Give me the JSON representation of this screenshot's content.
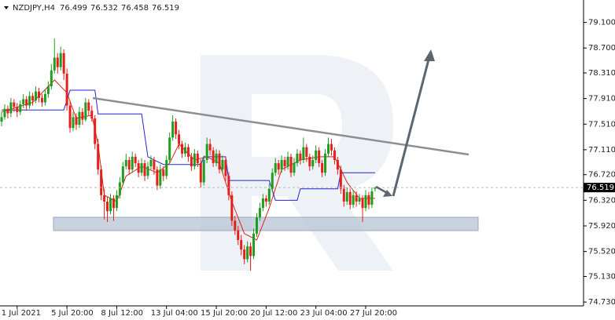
{
  "chart_data": {
    "type": "candlestick",
    "symbol": "NZDJPY,H4",
    "up_color": "#1e9e1e",
    "down_color": "#e3201b",
    "ylim": [
      74.67,
      79.45
    ],
    "yticks": [
      {
        "value": 79.1,
        "label": "79.100"
      },
      {
        "value": 78.7,
        "label": "78.700"
      },
      {
        "value": 78.31,
        "label": "78.310"
      },
      {
        "value": 77.91,
        "label": "77.910"
      },
      {
        "value": 77.51,
        "label": "77.510"
      },
      {
        "value": 77.11,
        "label": "77.110"
      },
      {
        "value": 76.72,
        "label": "76.720"
      },
      {
        "value": 76.32,
        "label": "76.320"
      },
      {
        "value": 75.92,
        "label": "75.920"
      },
      {
        "value": 75.52,
        "label": "75.520"
      },
      {
        "value": 75.13,
        "label": "75.130"
      },
      {
        "value": 74.73,
        "label": "74.730"
      }
    ],
    "xlim": [
      0,
      187
    ],
    "xticks": [
      {
        "value": 5,
        "label": "1 Jul 2021"
      },
      {
        "value": 21,
        "label": "5 Jul 20:00"
      },
      {
        "value": 37,
        "label": "8 Jul 12:00"
      },
      {
        "value": 53,
        "label": "13 Jul 04:00"
      },
      {
        "value": 69,
        "label": "15 Jul 20:00"
      },
      {
        "value": 85,
        "label": "20 Jul 12:00"
      },
      {
        "value": 101,
        "label": "23 Jul 04:00"
      },
      {
        "value": 117,
        "label": "27 Jul 20:00"
      }
    ],
    "ohlc": [
      [
        77.55,
        77.7,
        77.48,
        77.62
      ],
      [
        77.62,
        77.82,
        77.58,
        77.75
      ],
      [
        77.75,
        77.8,
        77.6,
        77.68
      ],
      [
        77.68,
        77.92,
        77.62,
        77.85
      ],
      [
        77.85,
        77.9,
        77.7,
        77.78
      ],
      [
        77.78,
        77.84,
        77.62,
        77.7
      ],
      [
        77.7,
        77.88,
        77.65,
        77.82
      ],
      [
        77.82,
        77.98,
        77.76,
        77.9
      ],
      [
        77.9,
        77.95,
        77.72,
        77.8
      ],
      [
        77.8,
        78.02,
        77.75,
        77.95
      ],
      [
        77.95,
        78.0,
        77.8,
        77.88
      ],
      [
        77.88,
        78.1,
        77.84,
        78.02
      ],
      [
        78.02,
        78.08,
        77.85,
        77.92
      ],
      [
        77.92,
        77.98,
        77.78,
        77.85
      ],
      [
        77.85,
        78.05,
        77.8,
        77.98
      ],
      [
        77.98,
        78.18,
        77.92,
        78.1
      ],
      [
        78.1,
        78.45,
        78.05,
        78.35
      ],
      [
        78.35,
        78.85,
        78.3,
        78.55
      ],
      [
        78.55,
        78.62,
        78.3,
        78.4
      ],
      [
        78.4,
        78.72,
        78.35,
        78.62
      ],
      [
        78.62,
        78.68,
        78.2,
        78.3
      ],
      [
        78.3,
        78.38,
        77.72,
        77.8
      ],
      [
        77.8,
        77.88,
        77.38,
        77.45
      ],
      [
        77.45,
        77.7,
        77.4,
        77.62
      ],
      [
        77.62,
        77.68,
        77.42,
        77.5
      ],
      [
        77.5,
        77.78,
        77.45,
        77.7
      ],
      [
        77.7,
        77.76,
        77.5,
        77.58
      ],
      [
        77.58,
        77.92,
        77.55,
        77.85
      ],
      [
        77.85,
        77.9,
        77.65,
        77.72
      ],
      [
        77.72,
        77.8,
        77.55,
        77.6
      ],
      [
        77.6,
        77.65,
        77.12,
        77.2
      ],
      [
        77.2,
        77.28,
        76.72,
        76.8
      ],
      [
        76.8,
        76.86,
        76.32,
        76.4
      ],
      [
        76.4,
        76.5,
        76.02,
        76.3
      ],
      [
        76.3,
        76.38,
        75.98,
        76.15
      ],
      [
        76.15,
        76.42,
        76.1,
        76.35
      ],
      [
        76.35,
        76.4,
        76.0,
        76.2
      ],
      [
        76.2,
        76.48,
        76.15,
        76.4
      ],
      [
        76.4,
        76.68,
        76.35,
        76.6
      ],
      [
        76.6,
        76.92,
        76.55,
        76.85
      ],
      [
        76.85,
        77.05,
        76.8,
        76.95
      ],
      [
        76.95,
        77.0,
        76.72,
        76.8
      ],
      [
        76.8,
        77.08,
        76.75,
        77.0
      ],
      [
        77.0,
        77.05,
        76.84,
        76.9
      ],
      [
        76.9,
        76.95,
        76.68,
        76.75
      ],
      [
        76.75,
        76.98,
        76.7,
        76.9
      ],
      [
        76.9,
        76.95,
        76.62,
        76.7
      ],
      [
        76.7,
        76.92,
        76.65,
        76.85
      ],
      [
        76.85,
        77.02,
        76.8,
        76.95
      ],
      [
        76.95,
        77.0,
        76.72,
        76.8
      ],
      [
        76.8,
        76.85,
        76.48,
        76.55
      ],
      [
        76.55,
        76.88,
        76.5,
        76.8
      ],
      [
        76.8,
        76.85,
        76.62,
        76.7
      ],
      [
        76.7,
        77.02,
        76.65,
        76.95
      ],
      [
        76.95,
        77.38,
        76.9,
        77.3
      ],
      [
        77.3,
        77.65,
        77.25,
        77.55
      ],
      [
        77.55,
        77.6,
        77.28,
        77.35
      ],
      [
        77.35,
        77.42,
        77.12,
        77.2
      ],
      [
        77.2,
        77.25,
        76.98,
        77.05
      ],
      [
        77.05,
        77.22,
        77.0,
        77.15
      ],
      [
        77.15,
        77.2,
        76.92,
        77.0
      ],
      [
        77.0,
        77.06,
        76.78,
        76.85
      ],
      [
        76.85,
        77.12,
        76.8,
        77.05
      ],
      [
        77.05,
        77.1,
        76.84,
        76.9
      ],
      [
        76.9,
        76.96,
        76.52,
        76.6
      ],
      [
        76.6,
        77.02,
        76.55,
        76.95
      ],
      [
        76.95,
        77.3,
        76.9,
        77.2
      ],
      [
        77.2,
        77.28,
        77.02,
        77.1
      ],
      [
        77.1,
        77.15,
        76.84,
        76.9
      ],
      [
        76.9,
        77.12,
        76.85,
        77.05
      ],
      [
        77.05,
        77.1,
        76.74,
        76.8
      ],
      [
        76.8,
        77.02,
        76.75,
        76.95
      ],
      [
        76.95,
        77.0,
        76.62,
        76.7
      ],
      [
        76.7,
        76.76,
        76.32,
        76.4
      ],
      [
        76.4,
        76.46,
        75.92,
        76.0
      ],
      [
        76.0,
        76.08,
        75.78,
        75.85
      ],
      [
        75.85,
        75.92,
        75.62,
        75.7
      ],
      [
        75.7,
        75.78,
        75.46,
        75.55
      ],
      [
        75.55,
        75.62,
        75.32,
        75.4
      ],
      [
        75.4,
        75.68,
        75.35,
        75.6
      ],
      [
        75.6,
        75.66,
        75.22,
        75.45
      ],
      [
        75.45,
        75.88,
        75.4,
        75.8
      ],
      [
        75.8,
        76.12,
        75.75,
        76.05
      ],
      [
        76.05,
        76.28,
        76.0,
        76.2
      ],
      [
        76.2,
        76.42,
        76.15,
        76.35
      ],
      [
        76.35,
        76.4,
        76.22,
        76.3
      ],
      [
        76.3,
        76.58,
        76.25,
        76.5
      ],
      [
        76.5,
        76.82,
        76.45,
        76.75
      ],
      [
        76.75,
        76.98,
        76.7,
        76.9
      ],
      [
        76.9,
        76.95,
        76.72,
        76.8
      ],
      [
        76.8,
        77.02,
        76.75,
        76.95
      ],
      [
        76.95,
        77.0,
        76.78,
        76.85
      ],
      [
        76.85,
        77.08,
        76.8,
        77.0
      ],
      [
        77.0,
        77.05,
        76.68,
        76.75
      ],
      [
        76.75,
        76.98,
        76.7,
        76.9
      ],
      [
        76.9,
        77.12,
        76.85,
        77.05
      ],
      [
        77.05,
        77.1,
        76.88,
        76.95
      ],
      [
        76.95,
        77.3,
        76.9,
        77.15
      ],
      [
        77.15,
        77.2,
        76.92,
        77.0
      ],
      [
        77.0,
        77.05,
        76.78,
        76.85
      ],
      [
        76.85,
        77.02,
        76.8,
        76.95
      ],
      [
        76.95,
        77.18,
        76.9,
        77.1
      ],
      [
        77.1,
        77.15,
        76.84,
        76.9
      ],
      [
        76.9,
        76.95,
        76.68,
        76.75
      ],
      [
        76.75,
        77.12,
        76.7,
        77.05
      ],
      [
        77.05,
        77.3,
        77.0,
        77.2
      ],
      [
        77.2,
        77.28,
        77.02,
        77.1
      ],
      [
        77.1,
        77.15,
        76.88,
        76.95
      ],
      [
        76.95,
        77.0,
        76.72,
        76.8
      ],
      [
        76.8,
        76.86,
        76.42,
        76.5
      ],
      [
        76.5,
        76.56,
        76.22,
        76.3
      ],
      [
        76.3,
        76.52,
        76.25,
        76.45
      ],
      [
        76.45,
        76.5,
        76.18,
        76.25
      ],
      [
        76.25,
        76.48,
        76.2,
        76.4
      ],
      [
        76.4,
        76.46,
        76.22,
        76.3
      ],
      [
        76.3,
        76.42,
        76.25,
        76.35
      ],
      [
        76.35,
        76.4,
        75.98,
        76.2
      ],
      [
        76.2,
        76.48,
        76.15,
        76.4
      ],
      [
        76.4,
        76.45,
        76.18,
        76.25
      ],
      [
        76.25,
        76.52,
        76.2,
        76.46
      ],
      [
        76.499,
        76.532,
        76.458,
        76.519
      ]
    ],
    "lines": [
      {
        "color": "#e3201b",
        "x": [
          0,
          10,
          17,
          21,
          24,
          29,
          31,
          33,
          37,
          40,
          45,
          50,
          54,
          57,
          62,
          66,
          70,
          74,
          78,
          82,
          86,
          90,
          96,
          102,
          107,
          111,
          115,
          120
        ],
        "values": [
          77.7,
          77.85,
          78.2,
          78.0,
          77.6,
          77.65,
          77.2,
          76.4,
          76.3,
          76.7,
          76.85,
          76.75,
          76.9,
          77.2,
          76.95,
          77.0,
          76.9,
          76.3,
          75.8,
          75.7,
          76.2,
          76.8,
          76.95,
          77.0,
          77.0,
          76.6,
          76.35,
          76.35
        ]
      },
      {
        "color": "#2323d8",
        "x": [
          0,
          20,
          22,
          30,
          31,
          45,
          47,
          52,
          64,
          65,
          72,
          73,
          86,
          88,
          95,
          96,
          108,
          109,
          120
        ],
        "values": [
          77.73,
          77.73,
          78.04,
          78.04,
          77.67,
          77.67,
          77.0,
          76.88,
          76.88,
          77.0,
          77.0,
          76.63,
          76.63,
          76.32,
          76.32,
          76.5,
          76.5,
          76.75,
          76.75
        ]
      }
    ]
  }
}
